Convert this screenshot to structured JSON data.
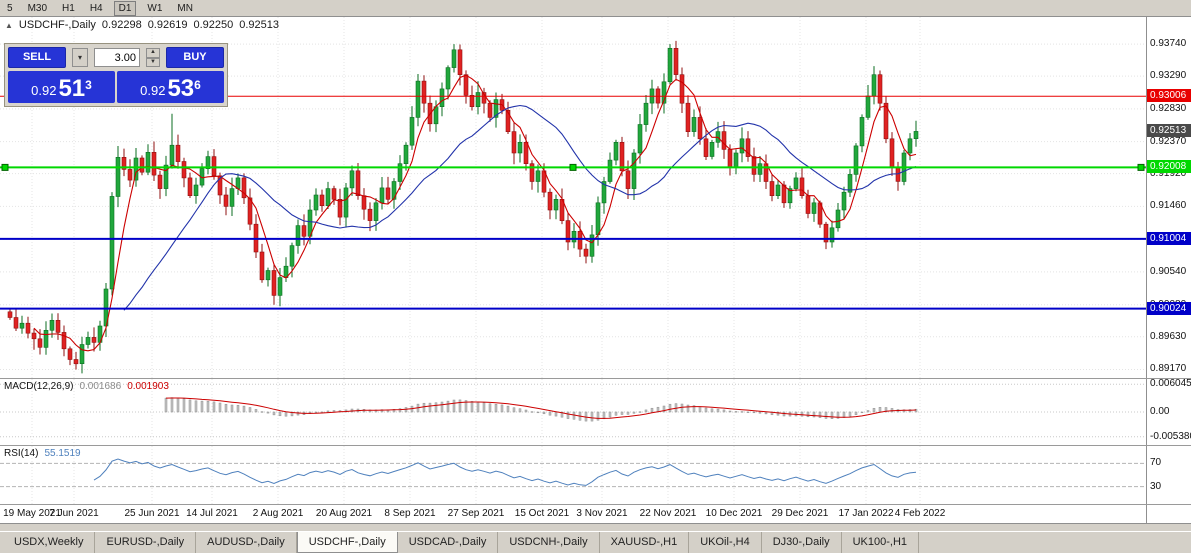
{
  "toolbar": {
    "timeframes": [
      "5",
      "M30",
      "H1",
      "H4",
      "D1",
      "W1",
      "MN"
    ],
    "active": "D1"
  },
  "header": {
    "marker": "▲",
    "title": "USDCHF-,Daily",
    "ohlc": [
      "0.92298",
      "0.92619",
      "0.92250",
      "0.92513"
    ]
  },
  "trade_panel": {
    "sell_label": "SELL",
    "buy_label": "BUY",
    "volume": "3.00",
    "bid": {
      "prefix": "0.92",
      "big": "51",
      "sup": "3"
    },
    "ask": {
      "prefix": "0.92",
      "big": "53",
      "sup": "6"
    },
    "button_color": "#2634d6"
  },
  "price_axis": {
    "labels": [
      "0.93740",
      "0.93290",
      "0.92830",
      "0.92370",
      "0.91920",
      "0.91460",
      "0.91000",
      "0.90540",
      "0.90080",
      "0.89630",
      "0.89170"
    ],
    "current": {
      "text": "0.92513",
      "price": 0.92513,
      "bg": "#4a4a4a"
    }
  },
  "chart": {
    "price_range": {
      "top": 0.9412,
      "bottom": 0.8905
    },
    "colors": {
      "bull": "#21a73c",
      "bear": "#e02222",
      "bull_stroke": "#0b6e22",
      "bear_stroke": "#8f1010",
      "ma_fast": "#cc0000",
      "ma_slow": "#2233aa",
      "grid": "#e4e4e4"
    },
    "hlines": [
      {
        "price": 0.93006,
        "text": "0.93006",
        "color": "#e80000",
        "width": 1,
        "selected": false
      },
      {
        "price": 0.92008,
        "text": "0.92008",
        "color": "#00d800",
        "width": 2,
        "selected": true
      },
      {
        "price": 0.91004,
        "text": "0.91004",
        "color": "#0000c8",
        "width": 2,
        "selected": false
      },
      {
        "price": 0.90024,
        "text": "0.90024",
        "color": "#0000c8",
        "width": 2,
        "selected": false
      }
    ],
    "x_ticks": [
      {
        "label": "19 May 2021",
        "index": 4
      },
      {
        "label": "7 Jun 2021",
        "index": 11
      },
      {
        "label": "25 Jun 2021",
        "index": 24
      },
      {
        "label": "14 Jul 2021",
        "index": 34
      },
      {
        "label": "2 Aug 2021",
        "index": 45
      },
      {
        "label": "20 Aug 2021",
        "index": 56
      },
      {
        "label": "8 Sep 2021",
        "index": 67
      },
      {
        "label": "27 Sep 2021",
        "index": 78
      },
      {
        "label": "15 Oct 2021",
        "index": 89
      },
      {
        "label": "3 Nov 2021",
        "index": 99
      },
      {
        "label": "22 Nov 2021",
        "index": 110
      },
      {
        "label": "10 Dec 2021",
        "index": 121
      },
      {
        "label": "29 Dec 2021",
        "index": 132
      },
      {
        "label": "17 Jan 2022",
        "index": 143
      },
      {
        "label": "4 Feb 2022",
        "index": 152
      }
    ],
    "first_open": 0.8998,
    "closes": [
      0.899,
      0.8975,
      0.8982,
      0.8968,
      0.896,
      0.8948,
      0.8972,
      0.8986,
      0.8969,
      0.8946,
      0.8931,
      0.8925,
      0.8952,
      0.8962,
      0.8955,
      0.8978,
      0.903,
      0.916,
      0.9215,
      0.9198,
      0.9183,
      0.9214,
      0.9194,
      0.9222,
      0.919,
      0.9171,
      0.9204,
      0.9232,
      0.9209,
      0.9186,
      0.9161,
      0.9176,
      0.9199,
      0.9216,
      0.9189,
      0.9162,
      0.9146,
      0.9171,
      0.9186,
      0.9158,
      0.9121,
      0.9082,
      0.9043,
      0.9056,
      0.9021,
      0.9046,
      0.9062,
      0.9091,
      0.9119,
      0.9104,
      0.9141,
      0.9162,
      0.9147,
      0.9171,
      0.9156,
      0.9131,
      0.9172,
      0.9196,
      0.9161,
      0.9142,
      0.9126,
      0.9151,
      0.9172,
      0.9156,
      0.9181,
      0.9206,
      0.9232,
      0.9271,
      0.9322,
      0.9291,
      0.9262,
      0.9286,
      0.9311,
      0.9341,
      0.9366,
      0.9331,
      0.9302,
      0.9286,
      0.9306,
      0.9291,
      0.9271,
      0.9296,
      0.9281,
      0.9251,
      0.9221,
      0.9236,
      0.9206,
      0.9181,
      0.9196,
      0.9166,
      0.9141,
      0.9156,
      0.9126,
      0.9096,
      0.9111,
      0.9086,
      0.9076,
      0.9106,
      0.9151,
      0.9181,
      0.9211,
      0.9236,
      0.9196,
      0.9171,
      0.9221,
      0.9261,
      0.9291,
      0.9311,
      0.9291,
      0.9321,
      0.9368,
      0.9331,
      0.9291,
      0.9251,
      0.9271,
      0.9241,
      0.9216,
      0.9236,
      0.9251,
      0.9226,
      0.9201,
      0.9221,
      0.9241,
      0.9216,
      0.9191,
      0.9206,
      0.9181,
      0.9161,
      0.9176,
      0.9151,
      0.9171,
      0.9186,
      0.9161,
      0.9136,
      0.9151,
      0.9121,
      0.9096,
      0.9116,
      0.9141,
      0.9166,
      0.9191,
      0.9231,
      0.9271,
      0.9301,
      0.9331,
      0.9291,
      0.9241,
      0.9201,
      0.9181,
      0.9221,
      0.9241,
      0.92513
    ],
    "spikes": {
      "11": {
        "l": 0.8917
      },
      "27": {
        "h": 0.9276
      },
      "44": {
        "l": 0.9008
      },
      "74": {
        "h": 0.9374
      },
      "96": {
        "l": 0.9066
      },
      "110": {
        "h": 0.9374
      },
      "136": {
        "l": 0.9086
      },
      "144": {
        "h": 0.9343
      }
    }
  },
  "macd": {
    "name": "MACD(12,26,9)",
    "value_main": "0.001686",
    "value_signal": "0.001903",
    "axis_labels": [
      "0.006045",
      "0.00",
      "-0.005380"
    ],
    "range": 0.0072,
    "colors": {
      "hist_fill": "#c2c2c2",
      "hist_stroke": "#8f8f8f",
      "signal": "#cc0000"
    }
  },
  "rsi": {
    "name": "RSI(14)",
    "value": "55.1519",
    "levels": [
      70,
      30
    ],
    "color": "#4f81bd"
  },
  "tabs": [
    "USDX,Weekly",
    "EURUSD-,Daily",
    "AUDUSD-,Daily",
    "USDCHF-,Daily",
    "USDCAD-,Daily",
    "USDCNH-,Daily",
    "XAUUSD-,H1",
    "UKOil-,H4",
    "DJ30-,Daily",
    "UK100-,H1"
  ],
  "active_tab": "USDCHF-,Daily"
}
